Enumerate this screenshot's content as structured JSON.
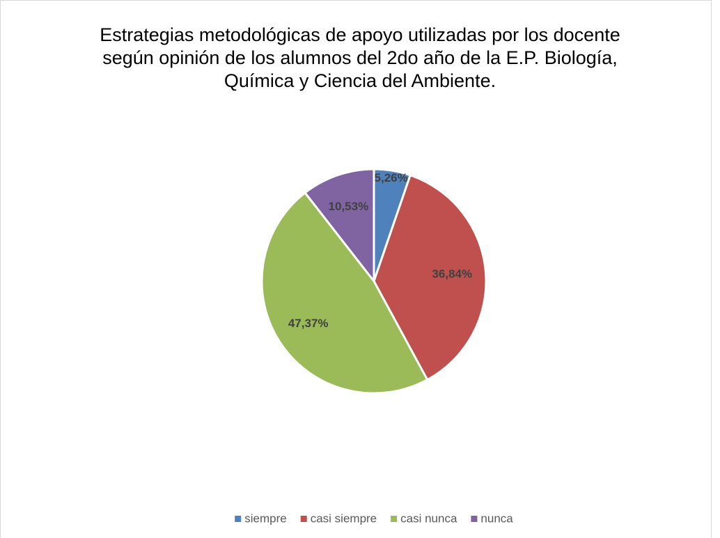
{
  "chart_data": {
    "type": "pie",
    "title": "Estrategias metodológicas de apoyo utilizadas por los docente según opinión de los alumnos del 2do año de la E.P. Biología, Química y Ciencia del Ambiente.",
    "categories": [
      "siempre",
      "casi siempre",
      "casi nunca",
      "nunca"
    ],
    "values": [
      5.26,
      36.84,
      47.37,
      10.53
    ],
    "value_labels": [
      "5,26%",
      "36,84%",
      "47,37%",
      "10,53%"
    ],
    "colors": [
      "#4f81bd",
      "#c0504d",
      "#9bbb59",
      "#8064a2"
    ],
    "legend": "bottom"
  }
}
